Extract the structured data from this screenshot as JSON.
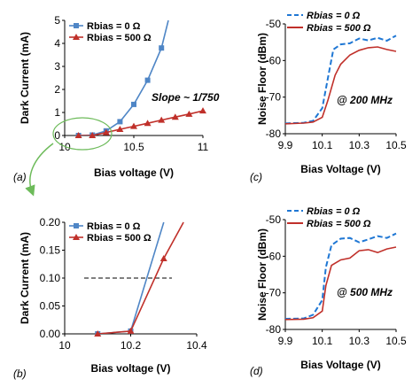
{
  "colors": {
    "blue": "#4f86c6",
    "blue_marker": "#4f86c6",
    "red": "#c0302a",
    "green": "#6dbb5a",
    "dashed_blue": "#1f77d4",
    "axis": "#000000"
  },
  "panel_labels": [
    "(a)",
    "(b)",
    "(c)",
    "(d)"
  ],
  "chart_data": [
    {
      "id": "a",
      "type": "line",
      "xlabel": "Bias voltage (V)",
      "ylabel": "Dark Current (mA)",
      "xlim": [
        10,
        11
      ],
      "ylim": [
        0,
        5
      ],
      "xticks": [
        "10",
        "10.5",
        "11"
      ],
      "yticks": [
        "0",
        "1",
        "2",
        "3",
        "4",
        "5"
      ],
      "annotation": "Slope ~ 1/750",
      "series": [
        {
          "name": "Rbias = 0 Ω",
          "marker": "square",
          "color": "blue",
          "x": [
            10.1,
            10.2,
            10.3,
            10.4,
            10.5,
            10.6,
            10.7
          ],
          "y": [
            0.0,
            0.02,
            0.2,
            0.6,
            1.35,
            2.4,
            3.8
          ],
          "curve_x": [
            10.1,
            10.2,
            10.3,
            10.4,
            10.5,
            10.6,
            10.7,
            10.75
          ],
          "curve_y": [
            0.0,
            0.02,
            0.2,
            0.6,
            1.35,
            2.4,
            3.8,
            5.0
          ]
        },
        {
          "name": "Rbias = 500 Ω",
          "marker": "triangle",
          "color": "red",
          "x": [
            10.1,
            10.2,
            10.3,
            10.4,
            10.5,
            10.6,
            10.7,
            10.8,
            10.9,
            11.0
          ],
          "y": [
            0.0,
            0.0,
            0.13,
            0.27,
            0.4,
            0.53,
            0.67,
            0.8,
            0.93,
            1.07
          ]
        }
      ]
    },
    {
      "id": "b",
      "type": "line",
      "xlabel": "Bias voltage (V)",
      "ylabel": "Dark Current (mA)",
      "xlim": [
        10.0,
        10.4
      ],
      "ylim": [
        0,
        0.2
      ],
      "xticks": [
        "10",
        "10.2",
        "10.4"
      ],
      "yticks": [
        "0.00",
        "0.05",
        "0.10",
        "0.15",
        "0.20"
      ],
      "hline": 0.1,
      "series": [
        {
          "name": "Rbias = 0 Ω",
          "marker": "square",
          "color": "blue",
          "x": [
            10.1,
            10.2
          ],
          "y": [
            0.0,
            0.005
          ],
          "curve_x": [
            10.1,
            10.2,
            10.3
          ],
          "curve_y": [
            0.0,
            0.005,
            0.2
          ]
        },
        {
          "name": "Rbias = 500 Ω",
          "marker": "triangle",
          "color": "red",
          "x": [
            10.1,
            10.2,
            10.3
          ],
          "y": [
            0.0,
            0.005,
            0.135
          ],
          "curve_x": [
            10.1,
            10.2,
            10.3,
            10.36
          ],
          "curve_y": [
            0.0,
            0.005,
            0.135,
            0.2
          ]
        }
      ]
    },
    {
      "id": "c",
      "type": "line",
      "xlabel": "Bias Voltage (V)",
      "ylabel": "Noise Floor (dBm)",
      "xlim": [
        9.9,
        10.5
      ],
      "ylim": [
        -80,
        -50
      ],
      "xticks": [
        "9.9",
        "10.1",
        "10.3",
        "10.5"
      ],
      "yticks": [
        "-80",
        "-70",
        "-60",
        "-50"
      ],
      "annotation": "@ 200 MHz",
      "series": [
        {
          "name": "Rbias = 0 Ω",
          "style": "dashed",
          "color": "dashed_blue",
          "x": [
            9.9,
            10.0,
            10.05,
            10.1,
            10.13,
            10.16,
            10.2,
            10.25,
            10.3,
            10.35,
            10.4,
            10.45,
            10.5
          ],
          "y": [
            -77.2,
            -77,
            -76.5,
            -73,
            -65,
            -57,
            -55.6,
            -55.3,
            -54,
            -54.5,
            -53.8,
            -54.6,
            -53.2
          ]
        },
        {
          "name": "Rbias = 500 Ω",
          "style": "solid",
          "color": "red",
          "x": [
            9.9,
            10.0,
            10.05,
            10.1,
            10.13,
            10.17,
            10.2,
            10.25,
            10.3,
            10.35,
            10.4,
            10.45,
            10.5
          ],
          "y": [
            -77.3,
            -77.1,
            -76.8,
            -75.5,
            -71,
            -64,
            -61,
            -58.5,
            -57.2,
            -56.5,
            -56.3,
            -57,
            -57.5
          ]
        }
      ]
    },
    {
      "id": "d",
      "type": "line",
      "xlabel": "Bias Voltage (V)",
      "ylabel": "Noise Floor (dBm)",
      "xlim": [
        9.9,
        10.5
      ],
      "ylim": [
        -80,
        -50
      ],
      "xticks": [
        "9.9",
        "10.1",
        "10.3",
        "10.5"
      ],
      "yticks": [
        "-80",
        "-70",
        "-60",
        "-50"
      ],
      "annotation": "@ 500 MHz",
      "series": [
        {
          "name": "Rbias = 0 Ω",
          "style": "dashed",
          "color": "dashed_blue",
          "x": [
            9.9,
            10.0,
            10.05,
            10.1,
            10.12,
            10.15,
            10.2,
            10.25,
            10.3,
            10.35,
            10.4,
            10.45,
            10.5
          ],
          "y": [
            -77.1,
            -77,
            -76,
            -72,
            -63,
            -57,
            -55.2,
            -55,
            -56.2,
            -55.4,
            -54.5,
            -55,
            -53.8
          ]
        },
        {
          "name": "Rbias = 500 Ω",
          "style": "solid",
          "color": "red",
          "x": [
            9.9,
            10.0,
            10.05,
            10.1,
            10.12,
            10.15,
            10.2,
            10.25,
            10.3,
            10.35,
            10.4,
            10.45,
            10.5
          ],
          "y": [
            -77.3,
            -77.2,
            -76.8,
            -75,
            -68,
            -62.5,
            -61,
            -60.5,
            -58.5,
            -58.2,
            -59,
            -58,
            -57.5
          ]
        }
      ]
    }
  ]
}
